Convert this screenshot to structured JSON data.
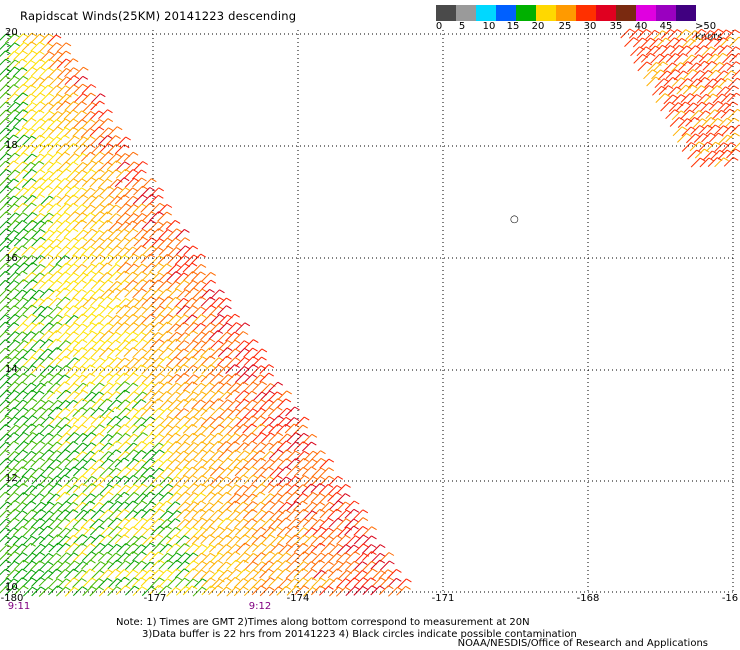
{
  "title": "Rapidscat Winds(25KM) 20141223 descending",
  "colorbar": {
    "labels": [
      "0",
      "5",
      "10",
      "15",
      "20",
      "25",
      "30",
      "35",
      "40",
      "45",
      ">50 knots"
    ],
    "colors": [
      "#4a4a4a",
      "#9a9a9a",
      "#00d8ff",
      "#0060ff",
      "#00b000",
      "#ffd800",
      "#ff9a00",
      "#ff3000",
      "#e00020",
      "#7a2a10",
      "#e000e0",
      "#9a00c0",
      "#400080"
    ]
  },
  "map": {
    "lat_labels": [
      "20",
      "18",
      "16",
      "14",
      "12",
      "10"
    ],
    "lon_labels": [
      "-180",
      "-177",
      "-174",
      "-171",
      "-168",
      "-16"
    ],
    "time_labels": [
      "9:11",
      "9:12"
    ],
    "symbol": "○"
  },
  "notes": {
    "line1": "Note: 1) Times are GMT 2)Times along bottom correspond to measurement at 20N",
    "line2": "3)Data buffer is 22 hrs from 20141223 4) Black circles indicate possible contamination"
  },
  "credit": "NOAA/NESDIS/Office of Research and Applications"
}
